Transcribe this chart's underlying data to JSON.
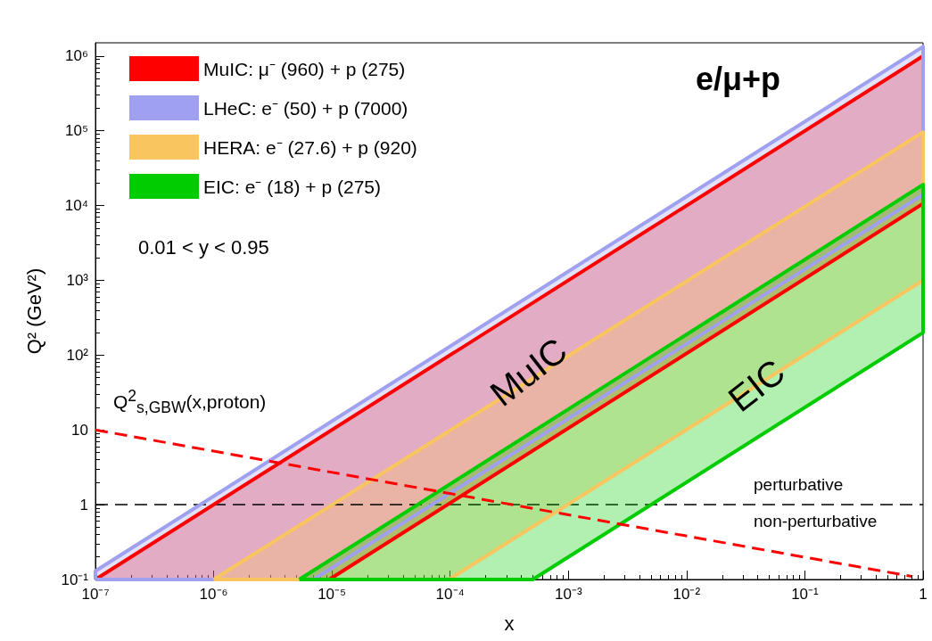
{
  "chart_data": {
    "type": "area",
    "xlabel": "x",
    "ylabel": "Q² (GeV²)",
    "log": "xy",
    "xlim": [
      1e-07,
      1
    ],
    "ylim": [
      0.1,
      1500000
    ],
    "xticks": [
      {
        "value": 1e-07,
        "label": "10⁻⁷"
      },
      {
        "value": 1e-06,
        "label": "10⁻⁶"
      },
      {
        "value": 1e-05,
        "label": "10⁻⁵"
      },
      {
        "value": 0.0001,
        "label": "10⁻⁴"
      },
      {
        "value": 0.001,
        "label": "10⁻³"
      },
      {
        "value": 0.01,
        "label": "10⁻²"
      },
      {
        "value": 0.1,
        "label": "10⁻¹"
      },
      1
    ],
    "yticks": [
      {
        "value": 0.1,
        "label": "10⁻¹"
      },
      1,
      10,
      {
        "value": 100,
        "label": "10²"
      },
      {
        "value": 1000,
        "label": "10³"
      },
      {
        "value": 10000,
        "label": "10⁴"
      },
      {
        "value": 100000,
        "label": "10⁵"
      },
      {
        "value": 1000000,
        "label": "10⁶"
      }
    ],
    "grid": false,
    "legend": "top left",
    "series": [
      {
        "name": "MuIC: μ⁻ (960) + p (275)",
        "color": "#ff0000",
        "x": [
          1e-07,
          1,
          1,
          9.5e-06,
          1e-07
        ],
        "values": [
          0.1,
          1000000,
          10600,
          0.1,
          0.1
        ]
      },
      {
        "name": "LHeC: e⁻ (50) + p (7000)",
        "color": "#a0a0f0",
        "x": [
          1e-07,
          1e-07,
          1,
          1,
          7e-06,
          1e-07
        ],
        "values": [
          0.1,
          0.13,
          1330000,
          14000,
          0.1,
          0.1
        ]
      },
      {
        "name": "HERA: e⁻ (27.6) + p (920)",
        "color": "#f9c55e",
        "x": [
          1e-06,
          1,
          1,
          9.8e-05,
          1e-06
        ],
        "values": [
          0.1,
          96000,
          1000,
          0.1,
          0.1
        ]
      },
      {
        "name": "EIC: e⁻ (18) + p (275)",
        "color": "#00cc00",
        "x": [
          5.3e-06,
          1,
          1,
          0.0005,
          5.3e-06
        ],
        "values": [
          0.1,
          19000,
          200,
          0.1,
          0.1
        ]
      },
      {
        "name": "Q$^{2}$$_{s,GBW}$(x,proton)",
        "type": "line",
        "line_style": "dashed",
        "color": "#ff0000",
        "x": [
          1e-07,
          0.8
        ],
        "values": [
          10,
          0.11
        ]
      }
    ],
    "ref_lines": [
      {
        "axis": "y",
        "value": 1,
        "color": "#000000",
        "line_style": "dashed"
      }
    ],
    "annotations": [
      "e/μ+p",
      "0.01 < y < 0.95",
      "MuIC",
      "EIC",
      "perturbative",
      "non-perturbative"
    ]
  }
}
